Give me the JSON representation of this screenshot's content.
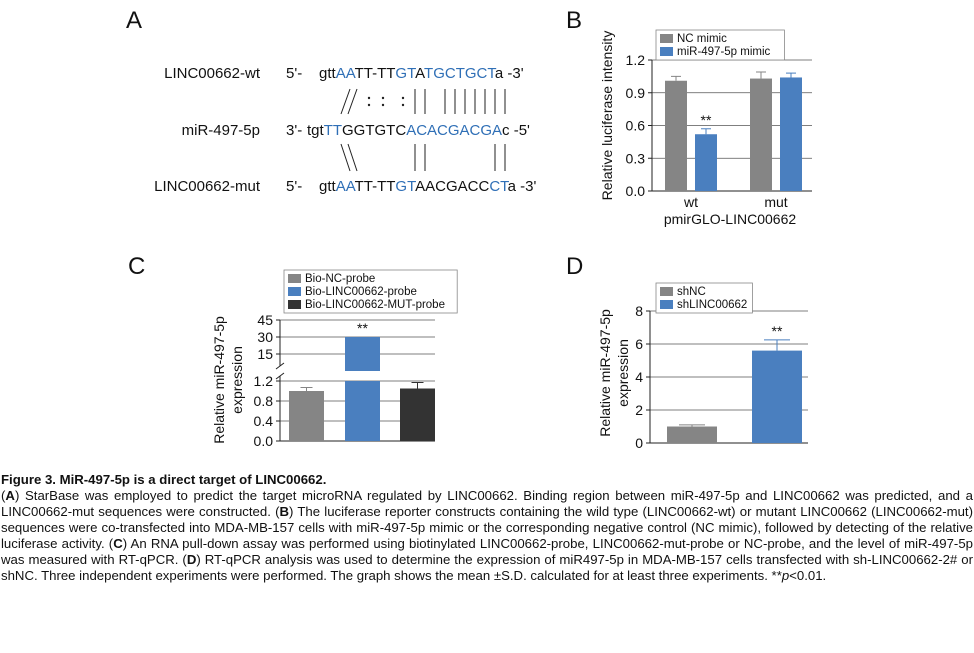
{
  "panel_labels": {
    "a": "A",
    "b": "B",
    "c": "C",
    "d": "D"
  },
  "panel_a": {
    "rows": [
      {
        "name": "LINC00662-wt",
        "prefix": "5'-",
        "segments": [
          {
            "t": "gtt",
            "c": "k"
          },
          {
            "t": "AA",
            "c": "b"
          },
          {
            "t": "TT-TT",
            "c": "k"
          },
          {
            "t": "GT",
            "c": "b"
          },
          {
            "t": "A",
            "c": "k"
          },
          {
            "t": "TGCTGCT",
            "c": "b"
          },
          {
            "t": "a",
            "c": "k"
          },
          {
            "t": " -3'",
            "c": "k"
          }
        ]
      },
      {
        "name": "miR-497-5p",
        "prefix": "3'-",
        "segments": [
          {
            "t": "tgt",
            "c": "k"
          },
          {
            "t": "TT",
            "c": "b"
          },
          {
            "t": "GGTGTC",
            "c": "k"
          },
          {
            "t": "ACACGACGA",
            "c": "b"
          },
          {
            "t": "c",
            "c": "k"
          },
          {
            "t": " -5'",
            "c": "k"
          }
        ]
      },
      {
        "name": "LINC00662-mut",
        "prefix": "5'-",
        "segments": [
          {
            "t": "gtt",
            "c": "k"
          },
          {
            "t": "AA",
            "c": "b"
          },
          {
            "t": "TT-TT",
            "c": "k"
          },
          {
            "t": "GT",
            "c": "b"
          },
          {
            "t": "AACGACC",
            "c": "k"
          },
          {
            "t": "CT",
            "c": "b"
          },
          {
            "t": "a",
            "c": "k"
          },
          {
            "t": " -3'",
            "c": "k"
          }
        ]
      }
    ],
    "colors": {
      "blue": "#2f6fb6",
      "black": "#111111"
    }
  },
  "chart_data": [
    {
      "type": "bar",
      "panel": "B",
      "categories": [
        "wt",
        "mut"
      ],
      "xlabel": "pmirGLO-LINC00662",
      "ylabel": "Relative luciferase intensity",
      "ylim": [
        0,
        1.2
      ],
      "yticks": [
        "0.0",
        "0.3",
        "0.6",
        "0.9",
        "1.2"
      ],
      "series": [
        {
          "name": "NC mimic",
          "color": "#858585",
          "values": [
            1.01,
            1.03
          ],
          "errors": [
            0.04,
            0.06
          ]
        },
        {
          "name": "miR-497-5p mimic",
          "color": "#4a7fbf",
          "values": [
            0.52,
            1.04
          ],
          "errors": [
            0.05,
            0.04
          ]
        }
      ],
      "annotations": [
        {
          "category": 0,
          "series": 1,
          "text": "**"
        }
      ],
      "legend": "top-left"
    },
    {
      "type": "bar",
      "panel": "C",
      "categories": [
        "Bio-NC-probe",
        "Bio-LINC00662-probe",
        "Bio-LINC00662-MUT-probe"
      ],
      "ylabel": "Relative miR-497-5p expression",
      "yaxis_break": {
        "lower": [
          0,
          1.2
        ],
        "upper": [
          0,
          45
        ]
      },
      "yticks_lower": [
        "0.0",
        "0.4",
        "0.8",
        "1.2"
      ],
      "yticks_upper": [
        "15",
        "30",
        "45"
      ],
      "series": [
        {
          "name": "Bio-NC-probe",
          "color": "#858585",
          "value": 1.0,
          "error": 0.07
        },
        {
          "name": "Bio-LINC00662-probe",
          "color": "#4a7fbf",
          "value": 30.0,
          "error": 0
        },
        {
          "name": "Bio-LINC00662-MUT-probe",
          "color": "#333333",
          "value": 1.05,
          "error": 0.12
        }
      ],
      "annotations": [
        {
          "series": 1,
          "text": "**"
        }
      ],
      "legend": "top-left"
    },
    {
      "type": "bar",
      "panel": "D",
      "categories": [
        "shNC",
        "shLINC00662"
      ],
      "ylabel": "Relative miR-497-5p expression",
      "ylim": [
        0,
        8
      ],
      "yticks": [
        "0",
        "2",
        "4",
        "6",
        "8"
      ],
      "series": [
        {
          "name": "shNC",
          "color": "#858585",
          "value": 1.0,
          "error": 0.1
        },
        {
          "name": "shLINC00662",
          "color": "#4a7fbf",
          "value": 5.6,
          "error": 0.65
        }
      ],
      "annotations": [
        {
          "series": 1,
          "text": "**"
        }
      ],
      "legend": "top-left"
    }
  ],
  "caption": {
    "title": "Figure 3. MiR-497-5p is a direct target of LINC00662.",
    "parts": [
      {
        "t": "(",
        "b": false
      },
      {
        "t": "A",
        "b": true
      },
      {
        "t": ") StarBase was employed to predict the target microRNA regulated by LINC00662. Binding region between miR-497-5p and LINC00662 was predicted, and a LINC00662-mut sequences were constructed. (",
        "b": false
      },
      {
        "t": "B",
        "b": true
      },
      {
        "t": ") The luciferase reporter constructs containing the wild type (LINC00662-wt) or mutant LINC00662 (LINC00662-mut) sequences were co-transfected into MDA-MB-157 cells with miR-497-5p mimic or the corresponding negative control (NC mimic), followed by detecting of the relative luciferase activity. (",
        "b": false
      },
      {
        "t": "C",
        "b": true
      },
      {
        "t": ") An RNA pull-down assay was performed using biotinylated LINC00662-probe, LINC00662-mut-probe or NC-probe, and the level of miR-497-5p was measured with RT-qPCR. (",
        "b": false
      },
      {
        "t": "D",
        "b": true
      },
      {
        "t": ") RT-qPCR analysis was used to determine the expression of miR497-5p in MDA-MB-157 cells transfected with sh-LINC00662-2# or shNC. Three independent experiments were performed. The graph shows the mean ±S.D. calculated for at least three experiments. **",
        "b": false
      },
      {
        "t": "p",
        "b": false,
        "i": true
      },
      {
        "t": "<0.01.",
        "b": false
      }
    ]
  }
}
